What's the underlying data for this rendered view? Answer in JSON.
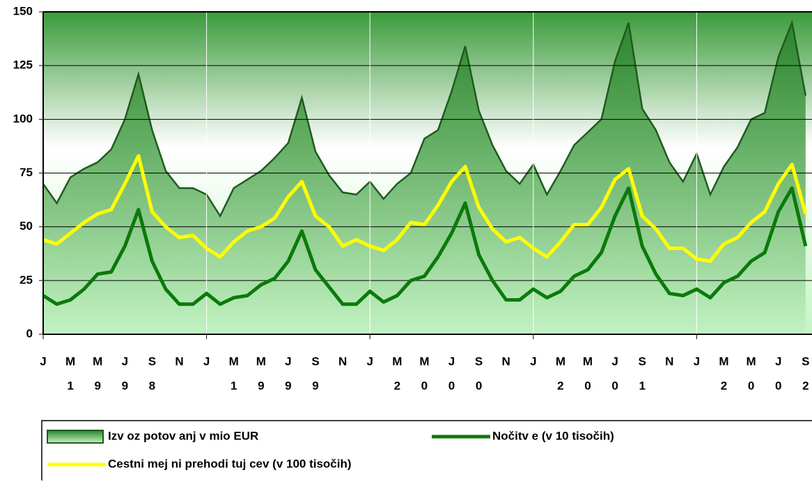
{
  "chart_data": {
    "type": "line",
    "categories": [
      "J",
      null,
      "M",
      null,
      "M",
      null,
      "J",
      null,
      "S",
      null,
      "N",
      null,
      "J",
      null,
      "M",
      null,
      "M",
      null,
      "J",
      null,
      "S",
      null,
      "N",
      null,
      "J",
      null,
      "M",
      null,
      "M",
      null,
      "J",
      null,
      "S",
      null,
      "N",
      null,
      "J",
      null,
      "M",
      null,
      "M",
      null,
      "J",
      null,
      "S",
      null,
      "N",
      null,
      "J",
      null,
      "M",
      null,
      "M",
      null,
      "J",
      null,
      "S"
    ],
    "category_sublabels": [
      null,
      null,
      "1",
      null,
      "9",
      null,
      "9",
      null,
      "8",
      null,
      null,
      null,
      null,
      null,
      "1",
      null,
      "9",
      null,
      "9",
      null,
      "9",
      null,
      null,
      null,
      null,
      null,
      "2",
      null,
      "0",
      null,
      "0",
      null,
      "0",
      null,
      null,
      null,
      null,
      null,
      "2",
      null,
      "0",
      null,
      "0",
      null,
      "1",
      null,
      null,
      null,
      null,
      null,
      "2",
      null,
      "0",
      null,
      "0",
      null,
      "2"
    ],
    "series": [
      {
        "name": "Izv oz potov anj v mio EUR",
        "type": "area",
        "color": "#1f5a1f",
        "values": [
          70,
          61,
          73,
          77,
          80,
          86,
          100,
          121,
          95,
          76,
          68,
          68,
          65,
          55,
          68,
          72,
          76,
          82,
          89,
          110,
          85,
          74,
          66,
          65,
          71,
          63,
          70,
          75,
          91,
          95,
          113,
          134,
          104,
          88,
          76,
          70,
          79,
          65,
          76,
          88,
          94,
          100,
          127,
          145,
          105,
          95,
          80,
          71,
          84,
          65,
          78,
          87,
          100,
          103,
          129,
          145,
          111
        ]
      },
      {
        "name": "Nočitv e (v 10 tisočih)",
        "type": "line",
        "color": "#0a7a0a",
        "values": [
          18,
          14,
          16,
          21,
          28,
          29,
          41,
          58,
          34,
          21,
          14,
          14,
          19,
          14,
          17,
          18,
          23,
          26,
          34,
          48,
          30,
          22,
          14,
          14,
          20,
          15,
          18,
          25,
          27,
          36,
          47,
          61,
          37,
          25,
          16,
          16,
          21,
          17,
          20,
          27,
          30,
          38,
          55,
          68,
          41,
          28,
          19,
          18,
          21,
          17,
          24,
          27,
          34,
          38,
          57,
          68,
          41
        ]
      },
      {
        "name": "Cestni mej ni prehodi tuj cev (v 100 tisočih)",
        "type": "line",
        "color": "#ffff00",
        "values": [
          44,
          42,
          47,
          52,
          56,
          58,
          70,
          83,
          57,
          50,
          45,
          46,
          40,
          36,
          43,
          48,
          50,
          54,
          64,
          71,
          55,
          50,
          41,
          44,
          41,
          39,
          44,
          52,
          51,
          60,
          71,
          78,
          59,
          49,
          43,
          45,
          40,
          36,
          43,
          51,
          51,
          59,
          72,
          77,
          55,
          49,
          40,
          40,
          35,
          34,
          42,
          45,
          52,
          57,
          70,
          79,
          56
        ]
      }
    ],
    "ylim": [
      0,
      150
    ],
    "yticks": [
      0,
      25,
      50,
      75,
      100,
      125,
      150
    ],
    "grid": true
  }
}
